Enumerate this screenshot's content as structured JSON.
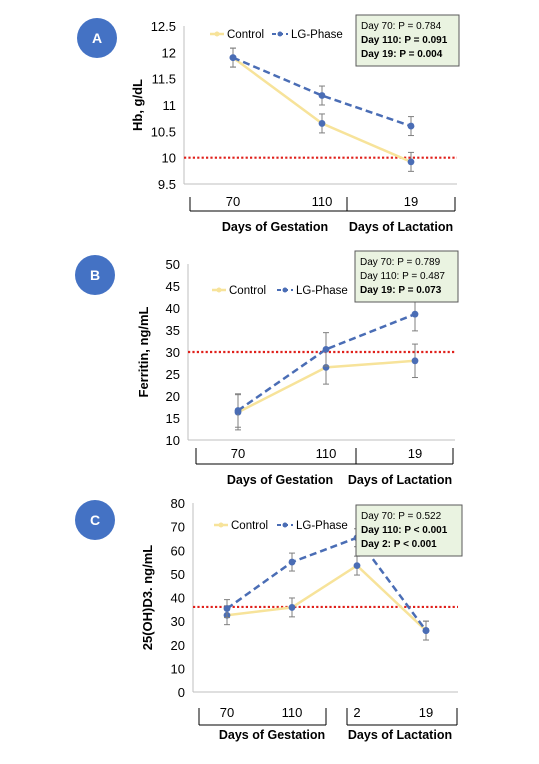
{
  "colors": {
    "control": "#F7E39A",
    "lg_phase": "#4A6DB5",
    "marker": "#4A6DB5",
    "threshold": "#E0201B",
    "error_bar": "#7F7F7F",
    "badge": "#4472C4",
    "stats_box_fill": "#EAF3E1",
    "axis": "#BFBFBF"
  },
  "chart_data": [
    {
      "panel": "A",
      "type": "line",
      "ylabel": "Hb, g/dL",
      "ylim": [
        9.5,
        12.5
      ],
      "yticks": [
        "9.5",
        "10",
        "10.5",
        "11",
        "11.5",
        "12",
        "12.5"
      ],
      "categories": [
        "70",
        "110",
        "19"
      ],
      "groups": [
        {
          "label": "Days of Gestation",
          "span": [
            0,
            1
          ]
        },
        {
          "label": "Days of Lactation",
          "span": [
            2,
            2
          ]
        }
      ],
      "series": [
        {
          "name": "Control",
          "style": "solid",
          "values": [
            11.9,
            10.65,
            9.92
          ],
          "errors": [
            0.18,
            0.18,
            0.18
          ]
        },
        {
          "name": "LG-Phase",
          "style": "dashed",
          "values": [
            11.9,
            11.18,
            10.6
          ],
          "errors": [
            0.18,
            0.18,
            0.18
          ]
        }
      ],
      "threshold": 10,
      "stats": [
        {
          "text": "Day 70: ",
          "p": "P = 0.784",
          "bold": false
        },
        {
          "text": "Day 110: ",
          "p": "P = 0.091",
          "bold": true
        },
        {
          "text": "Day 19: ",
          "p": "P = 0.004",
          "bold": true
        }
      ]
    },
    {
      "panel": "B",
      "type": "line",
      "ylabel": "Ferritin, ng/mL",
      "ylim": [
        10,
        50
      ],
      "yticks": [
        "10",
        "15",
        "20",
        "25",
        "30",
        "35",
        "40",
        "45",
        "50"
      ],
      "categories": [
        "70",
        "110",
        "19"
      ],
      "groups": [
        {
          "label": "Days of Gestation",
          "span": [
            0,
            1
          ]
        },
        {
          "label": "Days of Lactation",
          "span": [
            2,
            2
          ]
        }
      ],
      "series": [
        {
          "name": "Control",
          "style": "solid",
          "values": [
            16.3,
            26.5,
            28.0
          ],
          "errors": [
            4,
            3.8,
            3.8
          ]
        },
        {
          "name": "LG-Phase",
          "style": "dashed",
          "values": [
            16.7,
            30.6,
            38.6
          ],
          "errors": [
            3.8,
            3.8,
            3.8
          ]
        }
      ],
      "threshold": 30,
      "stats": [
        {
          "text": "Day 70: ",
          "p": "P = 0.789",
          "bold": false
        },
        {
          "text": "Day 110: ",
          "p": "P = 0.487",
          "bold": false
        },
        {
          "text": "Day 19: ",
          "p": "P = 0.073",
          "bold": true
        }
      ]
    },
    {
      "panel": "C",
      "type": "line",
      "ylabel": "25(OH)D3. ng/mL",
      "ylim": [
        0,
        80
      ],
      "yticks": [
        "0",
        "10",
        "20",
        "30",
        "40",
        "50",
        "60",
        "70",
        "80"
      ],
      "categories": [
        "70",
        "110",
        "2",
        "19"
      ],
      "groups": [
        {
          "label": "Days of Gestation",
          "span": [
            0,
            1
          ]
        },
        {
          "label": "Days of Lactation",
          "span": [
            2,
            3
          ]
        }
      ],
      "series": [
        {
          "name": "Control",
          "style": "solid",
          "values": [
            32.5,
            35.8,
            53.5,
            26
          ],
          "errors": [
            4,
            4,
            4,
            4
          ]
        },
        {
          "name": "LG-Phase",
          "style": "dashed",
          "values": [
            35.3,
            55,
            65.3,
            26
          ],
          "errors": [
            3.8,
            3.8,
            3.8,
            4
          ]
        }
      ],
      "threshold": 36,
      "stats": [
        {
          "text": "Day 70: ",
          "p": "P = 0.522",
          "bold": false
        },
        {
          "text": "Day 110: ",
          "p": "P < 0.001",
          "bold": true
        },
        {
          "text": "Day 2: ",
          "p": "P < 0.001",
          "bold": true
        }
      ]
    }
  ]
}
